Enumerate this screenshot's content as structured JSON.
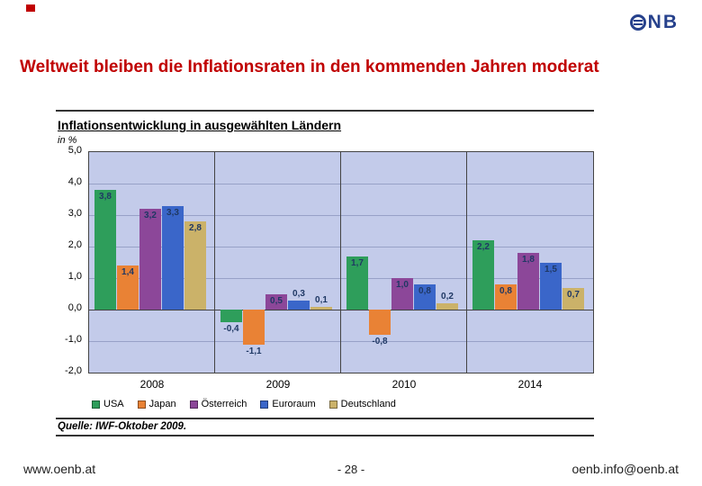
{
  "logo": {
    "text": "NB"
  },
  "slide_title": "Weltweit bleiben die Inflationsraten in den kommenden Jahren moderat",
  "chart": {
    "title": "Inflationsentwicklung in ausgewählten Ländern",
    "unit_label": "in %",
    "source": "Quelle: IWF-Oktober 2009."
  },
  "chart_data": {
    "type": "bar",
    "title": "Inflationsentwicklung in ausgewählten Ländern",
    "ylabel": "in %",
    "categories": [
      "2008",
      "2009",
      "2010",
      "2014"
    ],
    "series": [
      {
        "name": "USA",
        "color": "#2E9E5B",
        "values": [
          3.8,
          -0.4,
          1.7,
          2.2
        ]
      },
      {
        "name": "Japan",
        "color": "#E98235",
        "values": [
          1.4,
          -1.1,
          -0.8,
          0.8
        ]
      },
      {
        "name": "Österreich",
        "color": "#8C4799",
        "values": [
          3.2,
          0.5,
          1.0,
          1.8
        ]
      },
      {
        "name": "Euroraum",
        "color": "#3A66C9",
        "values": [
          3.3,
          0.3,
          0.8,
          1.5
        ]
      },
      {
        "name": "Deutschland",
        "color": "#CBB269",
        "values": [
          2.8,
          0.1,
          0.2,
          0.7
        ]
      }
    ],
    "ylim": [
      -2,
      5
    ],
    "ytick_step": 1,
    "grid": true,
    "legend_position": "bottom",
    "decimal_separator": ","
  },
  "colors": {
    "title_red": "#C00000",
    "logo_blue": "#26418C",
    "plot_background": "#C3CBEA"
  },
  "footer": {
    "left": "www.oenb.at",
    "center": "- 28 -",
    "right": "oenb.info@oenb.at"
  }
}
